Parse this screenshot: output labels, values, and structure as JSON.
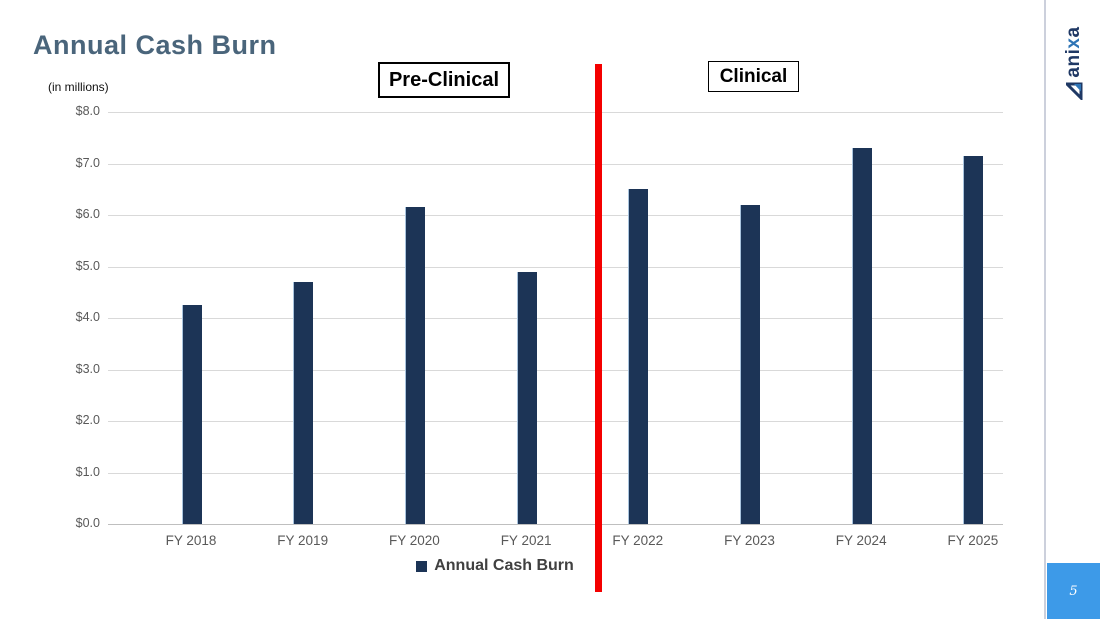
{
  "slide": {
    "title": "Annual Cash Burn",
    "units_label": "(in millions)",
    "page_number": "5",
    "logo": {
      "part1": "ani",
      "part2": "x",
      "part3": "a"
    },
    "phase_labels": {
      "pre": "Pre-Clinical",
      "post": "Clinical"
    }
  },
  "colors": {
    "bar": "#1c3456",
    "title": "#4a657b",
    "red_divider": "#f40000",
    "gridline": "#d9d9d9",
    "axis_text": "#595959",
    "page_badge": "#3d9ae8",
    "logo_navy": "#1f3864",
    "logo_blue": "#2e74b5"
  },
  "chart_data": {
    "type": "bar",
    "title": "Annual Cash Burn",
    "categories": [
      "FY 2018",
      "FY 2019",
      "FY 2020",
      "FY 2021",
      "FY 2022",
      "FY 2023",
      "FY 2024",
      "FY 2025"
    ],
    "values": [
      4.25,
      4.7,
      6.15,
      4.9,
      6.5,
      6.2,
      7.3,
      7.15
    ],
    "y_tick_labels": [
      "$8.0",
      "$7.0",
      "$6.0",
      "$5.0",
      "$4.0",
      "$3.0",
      "$2.0",
      "$1.0",
      "$0.0"
    ],
    "ylim": [
      0,
      8
    ],
    "ylabel": "(in millions)",
    "xlabel": "",
    "grid": true,
    "legend": [
      "Annual Cash Burn"
    ],
    "legend_position": "bottom",
    "annotations": [
      "Pre-Clinical phase covers FY 2018 - FY 2021 (left of red divider)",
      "Clinical phase covers FY 2022 - FY 2025 (right of red divider)"
    ]
  }
}
